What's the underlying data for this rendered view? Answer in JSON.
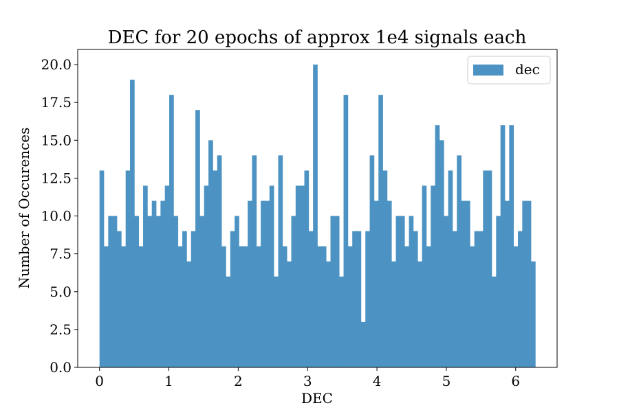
{
  "chart_data": {
    "type": "bar",
    "title": "DEC for 20 epochs of approx 1e4 signals each",
    "xlabel": "DEC",
    "ylabel": "Number of Occurences",
    "x_range": [
      0,
      6.2832
    ],
    "xlim": [
      -0.314,
      6.597
    ],
    "ylim": [
      0,
      21
    ],
    "bins": 100,
    "xticks": [
      0,
      1,
      2,
      3,
      4,
      5,
      6
    ],
    "xtick_labels": [
      "0",
      "1",
      "2",
      "3",
      "4",
      "5",
      "6"
    ],
    "yticks": [
      0,
      2.5,
      5,
      7.5,
      10,
      12.5,
      15,
      17.5,
      20
    ],
    "ytick_labels": [
      "0.0",
      "2.5",
      "5.0",
      "7.5",
      "10.0",
      "12.5",
      "15.0",
      "17.5",
      "20.0"
    ],
    "series": [
      {
        "name": "dec",
        "color": "#4c93c3",
        "values": [
          13,
          8,
          10,
          10,
          9,
          8,
          13,
          19,
          10,
          8,
          12,
          10,
          11,
          10,
          11,
          12,
          18,
          10,
          8,
          9,
          7,
          9,
          17,
          10,
          12,
          15,
          13,
          14,
          8,
          6,
          9,
          10,
          8,
          8,
          11,
          14,
          8,
          11,
          11,
          12,
          6,
          14,
          8,
          7,
          10,
          12,
          12,
          13,
          9,
          20,
          8,
          8,
          7,
          10,
          10,
          6,
          18,
          8,
          9,
          9,
          3,
          9,
          14,
          11,
          18,
          13,
          11,
          7,
          10,
          10,
          8,
          10,
          9,
          7,
          12,
          8,
          12,
          16,
          15,
          10,
          13,
          9,
          14,
          11,
          11,
          8,
          9,
          9,
          13,
          13,
          6,
          10,
          16,
          11,
          16,
          8,
          9,
          11,
          11,
          7
        ]
      }
    ],
    "legend": {
      "position": "upper right",
      "entries": [
        "dec"
      ]
    },
    "grid": false
  }
}
